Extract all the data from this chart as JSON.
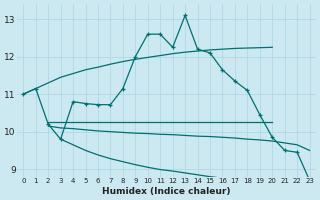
{
  "xlabel": "Humidex (Indice chaleur)",
  "background_color": "#cce8f0",
  "grid_color": "#b0d8e8",
  "line_color": "#007070",
  "xlim": [
    -0.5,
    23.5
  ],
  "ylim": [
    8.8,
    13.4
  ],
  "yticks": [
    9,
    10,
    11,
    12,
    13
  ],
  "xticks": [
    0,
    1,
    2,
    3,
    4,
    5,
    6,
    7,
    8,
    9,
    10,
    11,
    12,
    13,
    14,
    15,
    16,
    17,
    18,
    19,
    20,
    21,
    22,
    23
  ],
  "series": [
    {
      "x": [
        0,
        1,
        2,
        3,
        4,
        5,
        6,
        7,
        8,
        9,
        10,
        11,
        12,
        13,
        14,
        15,
        16,
        17,
        18,
        19,
        20
      ],
      "y": [
        11.0,
        11.15,
        11.3,
        11.45,
        11.55,
        11.65,
        11.72,
        11.8,
        11.87,
        11.93,
        11.98,
        12.03,
        12.08,
        12.12,
        12.15,
        12.18,
        12.2,
        12.22,
        12.23,
        12.24,
        12.25
      ],
      "marker": false
    },
    {
      "x": [
        0,
        1,
        2,
        3,
        4,
        5,
        6,
        7,
        8,
        9,
        10,
        11,
        12,
        13,
        14,
        15,
        16,
        17,
        18,
        19,
        20,
        21,
        22,
        23
      ],
      "y": [
        11.0,
        11.15,
        10.2,
        9.8,
        10.8,
        10.75,
        10.72,
        10.72,
        11.15,
        12.0,
        12.6,
        12.6,
        12.25,
        13.1,
        12.2,
        12.1,
        11.65,
        11.35,
        11.1,
        10.45,
        9.85,
        9.5,
        9.45,
        8.7
      ],
      "marker": true
    },
    {
      "x": [
        2,
        3,
        4,
        5,
        6,
        7,
        8,
        9,
        10,
        11,
        12,
        13,
        14,
        15,
        16,
        17,
        18,
        19,
        20
      ],
      "y": [
        10.25,
        10.25,
        10.25,
        10.25,
        10.25,
        10.25,
        10.25,
        10.25,
        10.25,
        10.25,
        10.25,
        10.25,
        10.25,
        10.25,
        10.25,
        10.25,
        10.25,
        10.25,
        10.25
      ],
      "marker": false
    },
    {
      "x": [
        2,
        3,
        4,
        5,
        6,
        7,
        8,
        9,
        10,
        11,
        12,
        13,
        14,
        15,
        16,
        17,
        18,
        19,
        20,
        21,
        22,
        23
      ],
      "y": [
        10.15,
        10.1,
        10.08,
        10.05,
        10.02,
        10.0,
        9.98,
        9.96,
        9.95,
        9.93,
        9.92,
        9.9,
        9.88,
        9.87,
        9.85,
        9.83,
        9.8,
        9.78,
        9.75,
        9.7,
        9.65,
        9.5
      ],
      "marker": false
    },
    {
      "x": [
        3,
        4,
        5,
        6,
        7,
        8,
        9,
        10,
        11,
        12,
        13,
        14,
        15,
        16,
        17,
        18,
        19,
        20,
        21,
        22,
        23
      ],
      "y": [
        9.8,
        9.65,
        9.5,
        9.38,
        9.28,
        9.2,
        9.12,
        9.05,
        8.99,
        8.95,
        8.9,
        8.85,
        8.8,
        8.76,
        8.72,
        8.68,
        8.65,
        8.62,
        8.6,
        8.57,
        8.55
      ],
      "marker": false
    }
  ]
}
